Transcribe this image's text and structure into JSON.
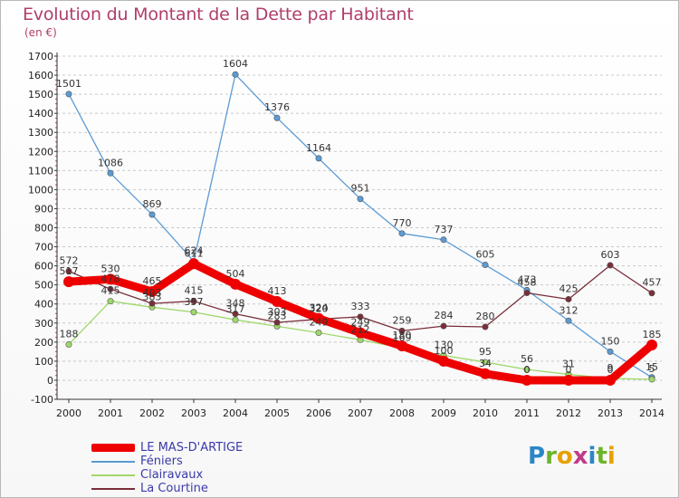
{
  "title": "Evolution du Montant de la Dette par Habitant",
  "subtitle": "(en €)",
  "logo": {
    "text": "Proxiti",
    "letters": [
      {
        "ch": "P",
        "color": "#2a86c8"
      },
      {
        "ch": "r",
        "color": "#6cb42a"
      },
      {
        "ch": "o",
        "color": "#e7a100"
      },
      {
        "ch": "x",
        "color": "#c03a8a"
      },
      {
        "ch": "i",
        "color": "#2a86c8"
      },
      {
        "ch": "t",
        "color": "#6cb42a"
      },
      {
        "ch": "i",
        "color": "#e7a100"
      }
    ]
  },
  "chart_data": {
    "type": "line",
    "title": "Evolution du Montant de la Dette par Habitant",
    "subtitle": "(en €)",
    "xlabel": "",
    "ylabel": "",
    "x": [
      "2000",
      "2001",
      "2002",
      "2003",
      "2004",
      "2005",
      "2006",
      "2007",
      "2008",
      "2009",
      "2010",
      "2011",
      "2012",
      "2013",
      "2014"
    ],
    "ylim": [
      -100,
      1700
    ],
    "yticks": [
      "-100",
      "0",
      "100",
      "200",
      "300",
      "400",
      "500",
      "600",
      "700",
      "800",
      "900",
      "1000",
      "1100",
      "1200",
      "1300",
      "1400",
      "1500",
      "1600",
      "1700"
    ],
    "grid": "horizontal dashed",
    "legend_position": "bottom-left",
    "series": [
      {
        "name": "Féniers",
        "color": "#5b9bd5",
        "values": [
          1501,
          1086,
          869,
          624,
          1604,
          1376,
          1164,
          951,
          770,
          737,
          605,
          473,
          312,
          150,
          15
        ],
        "labels": [
          "1501",
          "1086",
          "869",
          "624",
          "1604",
          "1376",
          "1164",
          "951",
          "770",
          "737",
          "605",
          "473",
          "312",
          "150",
          "15"
        ]
      },
      {
        "name": "Clairavaux",
        "color": "#9fd86a",
        "values": [
          188,
          415,
          383,
          357,
          317,
          283,
          249,
          212,
          169,
          130,
          95,
          56,
          31,
          9,
          5
        ],
        "labels": [
          "188",
          "415",
          "383",
          "357",
          "317",
          "283",
          "249",
          "212",
          "169",
          "130",
          "95",
          "56",
          "31",
          "9",
          "5"
        ]
      },
      {
        "name": "La Courtine",
        "color": "#7a2e3a",
        "values": [
          572,
          478,
          403,
          415,
          348,
          303,
          320,
          333,
          259,
          284,
          280,
          458,
          425,
          603,
          457
        ],
        "labels": [
          "572",
          "478",
          "403",
          "415",
          "348",
          "303",
          "320",
          "333",
          "259",
          "284",
          "280",
          "458",
          "425",
          "603",
          "457"
        ]
      },
      {
        "name": "LE MAS-D'ARTIGE",
        "color": "#ee0000",
        "values": [
          517,
          530,
          465,
          611,
          504,
          413,
          324,
          249,
          180,
          100,
          34,
          0,
          0,
          0,
          185
        ],
        "labels": [
          "517",
          "530",
          "465",
          "611",
          "504",
          "413",
          "324",
          "249",
          "180",
          "100",
          "34",
          "0",
          "0",
          "0",
          "185"
        ]
      }
    ]
  },
  "legend": [
    {
      "label": "LE MAS-D'ARTIGE",
      "color": "#ee0000"
    },
    {
      "label": "Féniers",
      "color": "#5b9bd5"
    },
    {
      "label": "Clairavaux",
      "color": "#9fd86a"
    },
    {
      "label": "La Courtine",
      "color": "#7a2e3a"
    }
  ]
}
